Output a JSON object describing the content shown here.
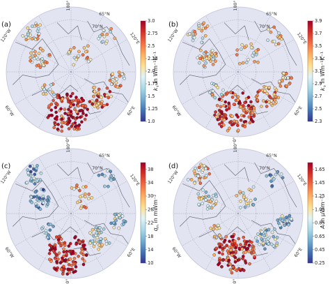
{
  "panels": [
    {
      "id": "a",
      "label": "(a)",
      "colorbar": {
        "title_var": "k",
        "title_sub": "1",
        "title_rest": " in Wm⁻¹K⁻¹",
        "ticks": [
          "1.0",
          "1.25",
          "1.5",
          "1.75",
          "2.0",
          "2.25",
          "2.5",
          "2.75",
          "3.0"
        ],
        "range": [
          1.0,
          3.0
        ]
      },
      "grid_labels": [
        "65°N",
        "70°N",
        "120°W",
        "120°E",
        "60°W",
        "60°E",
        "180°",
        "0°"
      ],
      "point_bias": "mixed-high"
    },
    {
      "id": "b",
      "label": "(b)",
      "colorbar": {
        "title_var": "k",
        "title_sub": "2",
        "title_rest": " in Wm⁻¹K⁻¹",
        "ticks": [
          "2.3",
          "2.5",
          "2.7",
          "2.9",
          "3.1",
          "3.3",
          "3.5",
          "3.7",
          "3.9"
        ],
        "range": [
          2.3,
          3.9
        ]
      },
      "grid_labels": [
        "65°N",
        "70°N",
        "120°W",
        "120°E",
        "60°W",
        "60°E",
        "180°",
        "0°"
      ],
      "point_bias": "mixed"
    },
    {
      "id": "c",
      "label": "(c)",
      "colorbar": {
        "title_var": "q",
        "title_sub": "D",
        "title_rest": " in mWm⁻²",
        "ticks": [
          "10",
          "14",
          "18",
          "22",
          "26",
          "30",
          "34",
          "38"
        ],
        "range": [
          10,
          40
        ]
      },
      "grid_labels": [
        "65°N",
        "70°N",
        "120°W",
        "120°E",
        "60°W",
        "60°E",
        "180°",
        "0°"
      ],
      "point_bias": "high-south-low-west"
    },
    {
      "id": "d",
      "label": "(d)",
      "colorbar": {
        "title_var": "A",
        "title_sub": "",
        "title_rest": " in μWm⁻³",
        "ticks": [
          "0.25",
          "0.45",
          "0.65",
          "0.85",
          "1.05",
          "1.25",
          "1.45",
          "1.65"
        ],
        "range": [
          0.25,
          1.75
        ]
      },
      "grid_labels": [
        "65°N",
        "70°N",
        "120°W",
        "120°E",
        "60°W",
        "60°E",
        "180°",
        "0°"
      ],
      "point_bias": "high-south-low-north"
    }
  ],
  "colors": {
    "ocean": "#e2e4f1",
    "grid": "#9a9ab0",
    "coast": "#5a5a6a",
    "rim": "#c8cade"
  }
}
